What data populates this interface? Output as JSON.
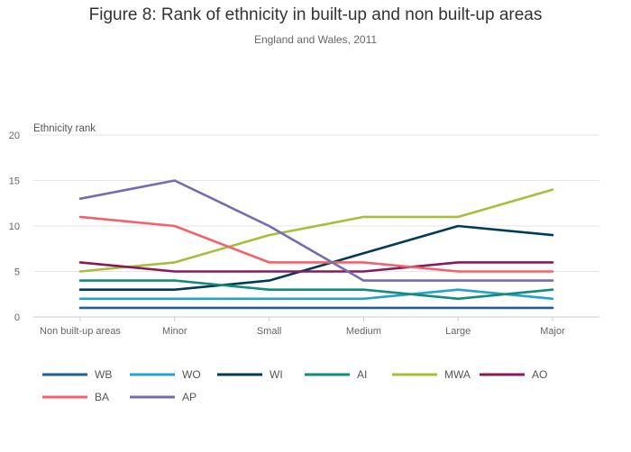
{
  "chart_data": {
    "type": "line",
    "title": "Figure 8: Rank of ethnicity in built-up and non built-up areas",
    "subtitle": "England and Wales, 2011",
    "ylabel": "Ethnicity rank",
    "xlabel": "",
    "categories": [
      "Non built-up areas",
      "Minor",
      "Small",
      "Medium",
      "Large",
      "Major"
    ],
    "ylim": [
      0,
      20
    ],
    "yticks": [
      0,
      5,
      10,
      15,
      20
    ],
    "grid": true,
    "legend_position": "bottom",
    "series": [
      {
        "name": "WB",
        "color": "#206095",
        "values": [
          1,
          1,
          1,
          1,
          1,
          1
        ]
      },
      {
        "name": "WO",
        "color": "#27a0cc",
        "values": [
          2,
          2,
          2,
          2,
          3,
          2
        ]
      },
      {
        "name": "WI",
        "color": "#003c57",
        "values": [
          3,
          3,
          4,
          7,
          10,
          9
        ]
      },
      {
        "name": "AI",
        "color": "#118c7b",
        "values": [
          4,
          4,
          3,
          3,
          2,
          3
        ]
      },
      {
        "name": "MWA",
        "color": "#a8bd3a",
        "values": [
          5,
          6,
          9,
          11,
          11,
          14
        ]
      },
      {
        "name": "AO",
        "color": "#871a5b",
        "values": [
          6,
          5,
          5,
          5,
          6,
          6
        ]
      },
      {
        "name": "BA",
        "color": "#f66068",
        "values": [
          11,
          10,
          6,
          6,
          5,
          5
        ]
      },
      {
        "name": "AP",
        "color": "#746cb1",
        "values": [
          13,
          15,
          10,
          4,
          4,
          4
        ]
      }
    ]
  }
}
